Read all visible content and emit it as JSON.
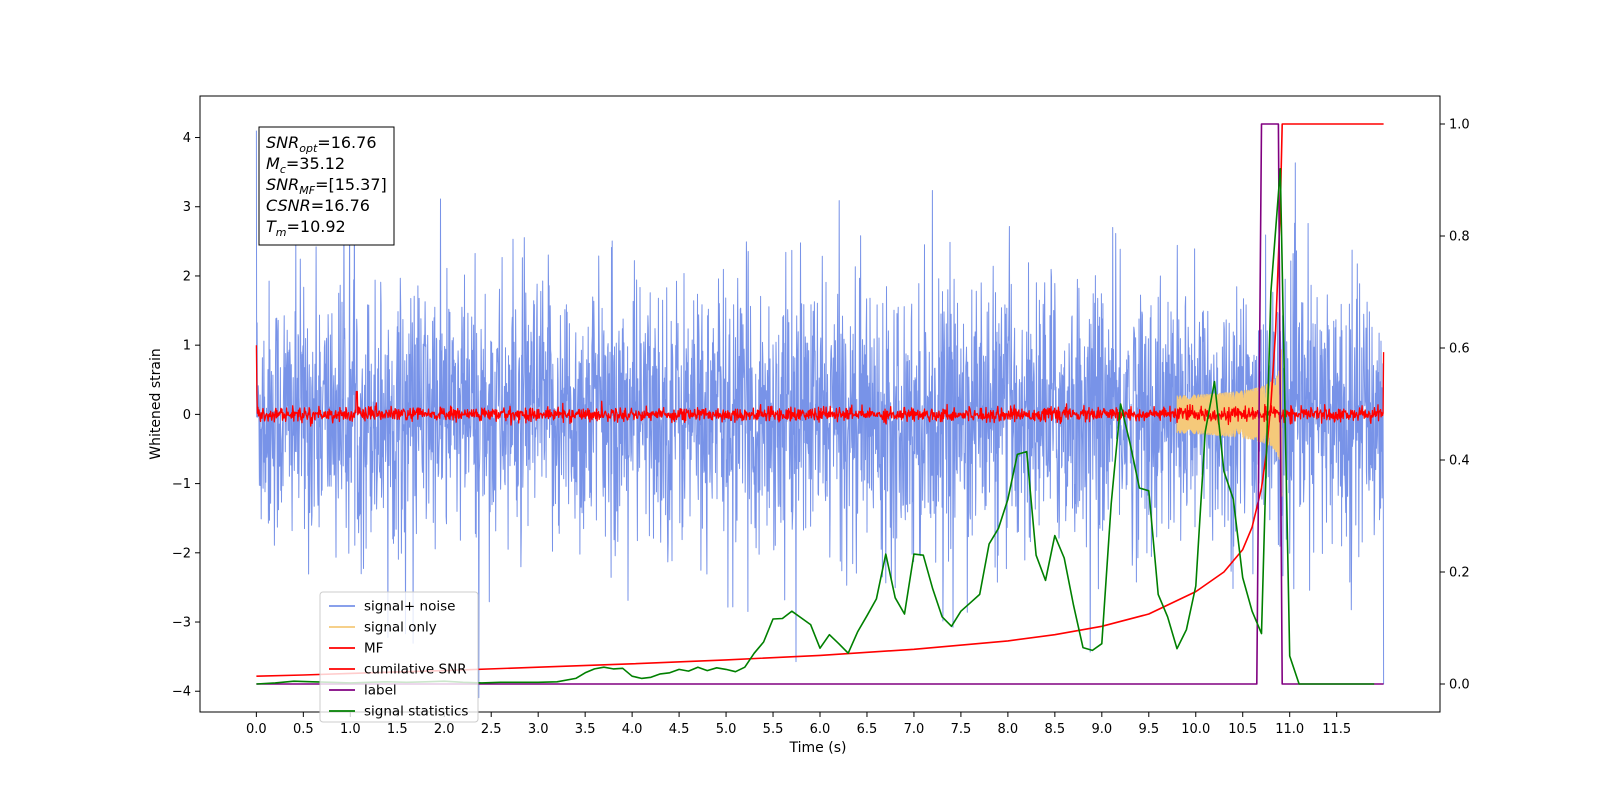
{
  "chart_data": {
    "type": "line",
    "title": "",
    "xlabel": "Time (s)",
    "ylabel": "Whitened strain",
    "y2label": "",
    "xlim": [
      -0.6,
      12.6
    ],
    "ylim": [
      -4.3,
      4.6
    ],
    "y2lim": [
      -0.05,
      1.05
    ],
    "x_ticks": [
      "0.0",
      "0.5",
      "1.0",
      "1.5",
      "2.0",
      "2.5",
      "3.0",
      "3.5",
      "4.0",
      "4.5",
      "5.0",
      "5.5",
      "6.0",
      "6.5",
      "7.0",
      "7.5",
      "8.0",
      "8.5",
      "9.0",
      "9.5",
      "10.0",
      "10.5",
      "11.0",
      "11.5"
    ],
    "y_ticks": [
      "4",
      "3",
      "2",
      "1",
      "0",
      "−1",
      "−2",
      "−3",
      "−4"
    ],
    "y2_ticks": [
      "1.0",
      "0.8",
      "0.6",
      "0.4",
      "0.2",
      "0.0"
    ],
    "grid": false,
    "legend_position": "lower-left",
    "annotation": [
      {
        "main": "SNR",
        "sub": "opt",
        "value": "=16.76"
      },
      {
        "main": "M",
        "sub": "c",
        "value": "=35.12"
      },
      {
        "main": "SNR",
        "sub": "MF",
        "value": "=[15.37]"
      },
      {
        "main": "CSNR",
        "sub": "",
        "value": "=16.76"
      },
      {
        "main": "T",
        "sub": "m",
        "value": "=10.92"
      }
    ],
    "series": [
      {
        "name": "signal+ noise",
        "color": "#7893e8",
        "axis": "left",
        "style": "noise",
        "x_range": [
          0.0,
          12.0
        ],
        "amplitude": 1.0
      },
      {
        "name": "signal only",
        "color": "#f5c97a",
        "axis": "left",
        "style": "chirp",
        "x_range": [
          9.8,
          10.92
        ],
        "peak_amplitude": 1.3
      },
      {
        "name": "MF",
        "color": "#ff0000",
        "axis": "left",
        "style": "noise",
        "x_range": [
          0.0,
          12.0
        ],
        "amplitude": 0.05
      },
      {
        "name": "cumilative SNR",
        "color": "#ff0000",
        "axis": "right",
        "x": [
          0.0,
          0.5,
          1.0,
          2.0,
          3.0,
          4.0,
          5.0,
          6.0,
          7.0,
          8.0,
          8.5,
          9.0,
          9.5,
          10.0,
          10.3,
          10.5,
          10.6,
          10.7,
          10.75,
          10.8,
          10.85,
          10.9,
          10.92,
          12.0
        ],
        "y": [
          0.014,
          0.016,
          0.019,
          0.024,
          0.03,
          0.036,
          0.043,
          0.051,
          0.062,
          0.077,
          0.088,
          0.103,
          0.125,
          0.165,
          0.2,
          0.24,
          0.28,
          0.35,
          0.41,
          0.5,
          0.63,
          0.85,
          1.0,
          1.0
        ]
      },
      {
        "name": "label",
        "color": "#800080",
        "axis": "right",
        "x": [
          0.0,
          10.65,
          10.7,
          10.88,
          10.92,
          12.0
        ],
        "y": [
          0.0,
          0.0,
          1.0,
          1.0,
          0.0,
          0.0
        ]
      },
      {
        "name": "signal statistics",
        "color": "#008000",
        "axis": "right",
        "x": [
          0.0,
          0.2,
          0.4,
          0.6,
          0.8,
          1.0,
          1.2,
          1.4,
          1.6,
          1.8,
          2.0,
          2.2,
          2.4,
          2.6,
          2.8,
          3.0,
          3.2,
          3.4,
          3.5,
          3.6,
          3.7,
          3.8,
          3.9,
          4.0,
          4.1,
          4.2,
          4.3,
          4.4,
          4.5,
          4.6,
          4.7,
          4.8,
          4.9,
          5.0,
          5.1,
          5.2,
          5.3,
          5.4,
          5.5,
          5.6,
          5.7,
          5.8,
          5.9,
          6.0,
          6.1,
          6.2,
          6.3,
          6.4,
          6.5,
          6.6,
          6.7,
          6.8,
          6.9,
          7.0,
          7.1,
          7.2,
          7.3,
          7.4,
          7.5,
          7.6,
          7.7,
          7.8,
          7.9,
          8.0,
          8.1,
          8.2,
          8.3,
          8.4,
          8.5,
          8.6,
          8.7,
          8.8,
          8.9,
          9.0,
          9.1,
          9.2,
          9.3,
          9.4,
          9.5,
          9.6,
          9.7,
          9.8,
          9.9,
          10.0,
          10.1,
          10.2,
          10.3,
          10.4,
          10.5,
          10.6,
          10.7,
          10.8,
          10.9,
          11.0,
          11.1,
          11.5,
          11.9
        ],
        "y": [
          0.0,
          0.002,
          0.005,
          0.004,
          0.003,
          0.002,
          0.003,
          0.004,
          0.003,
          0.004,
          0.005,
          0.003,
          0.002,
          0.003,
          0.003,
          0.003,
          0.004,
          0.01,
          0.02,
          0.027,
          0.03,
          0.027,
          0.028,
          0.014,
          0.01,
          0.012,
          0.018,
          0.02,
          0.026,
          0.023,
          0.03,
          0.024,
          0.029,
          0.026,
          0.022,
          0.03,
          0.055,
          0.075,
          0.116,
          0.117,
          0.13,
          0.118,
          0.106,
          0.064,
          0.088,
          0.072,
          0.055,
          0.093,
          0.122,
          0.152,
          0.232,
          0.154,
          0.125,
          0.232,
          0.23,
          0.17,
          0.12,
          0.103,
          0.13,
          0.145,
          0.16,
          0.25,
          0.278,
          0.33,
          0.41,
          0.415,
          0.23,
          0.185,
          0.265,
          0.225,
          0.14,
          0.065,
          0.06,
          0.072,
          0.322,
          0.5,
          0.43,
          0.35,
          0.345,
          0.16,
          0.12,
          0.063,
          0.097,
          0.175,
          0.45,
          0.54,
          0.38,
          0.33,
          0.19,
          0.13,
          0.09,
          0.7,
          0.92,
          0.05,
          0.0,
          0.0,
          0.0
        ]
      }
    ]
  }
}
